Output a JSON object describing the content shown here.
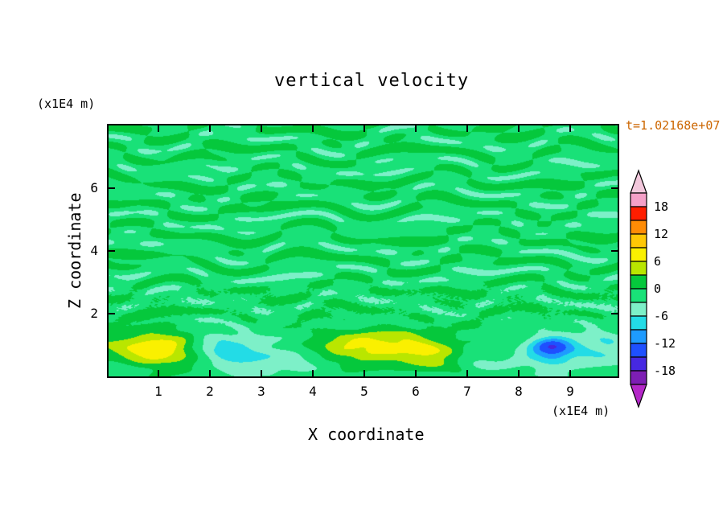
{
  "background": "#ffffff",
  "chart_data": {
    "type": "heatmap",
    "subtype": "filled-contour",
    "title": "vertical velocity",
    "xlabel": "X coordinate",
    "ylabel": "Z coordinate",
    "x_unit_label": "(x1E4 m)",
    "y_unit_label": "(x1E4 m)",
    "time_annotation": "t=1.02168e+07",
    "time_annotation_color": "#cc6600",
    "x_ticks": [
      1,
      2,
      3,
      4,
      5,
      6,
      7,
      8,
      9
    ],
    "y_ticks": [
      2,
      4,
      6
    ],
    "x_range": [
      0,
      9.92
    ],
    "y_range": [
      0,
      8.0
    ],
    "grid": false,
    "legend_position": "right-colorbar",
    "colorbar": {
      "min": -21,
      "max": 21,
      "step": 3,
      "tick_values": [
        18,
        12,
        6,
        0,
        -6,
        -12,
        -18
      ],
      "colors_low_to_high": [
        "#7D1EB4",
        "#4628E1",
        "#1E50FF",
        "#1E9BFF",
        "#23DCE6",
        "#7DF0C8",
        "#19E178",
        "#05C83C",
        "#B9E600",
        "#FAF000",
        "#FFC805",
        "#FF8C05",
        "#FF1E00",
        "#F5A0C8"
      ],
      "under_arrow_color": "#B428C8",
      "over_arrow_color": "#F2C8DC"
    },
    "field": {
      "description": "vertical velocity w(x,z): near-zero streaky two-tone green turbulence aloft, convective extrema in lowest layer (z<1.5)",
      "base": -0.9,
      "streak_amp": 1.5,
      "streak_bottom_amp": 0.45,
      "stipple_band_center": 2.35,
      "stipple_band_width": 0.55,
      "blobs": [
        {
          "x": 0.95,
          "z": 0.85,
          "sx": 0.55,
          "sz": 0.42,
          "a": 9.5,
          "note": "yellow updraft bottom-left"
        },
        {
          "x": 5.7,
          "z": 0.95,
          "sx": 0.8,
          "sz": 0.38,
          "a": 8.0,
          "note": "yellow updraft center"
        },
        {
          "x": 6.5,
          "z": 0.65,
          "sx": 0.45,
          "sz": 0.3,
          "a": 5.0,
          "note": "gold companion of center updraft"
        },
        {
          "x": 4.95,
          "z": 1.05,
          "sx": 0.45,
          "sz": 0.3,
          "a": 3.2,
          "note": "weak positive patch"
        },
        {
          "x": 2.55,
          "z": 0.8,
          "sx": 0.6,
          "sz": 0.42,
          "a": -5.8,
          "note": "cyan downdraft"
        },
        {
          "x": 3.6,
          "z": 0.45,
          "sx": 0.5,
          "sz": 0.3,
          "a": -3.2,
          "note": "aquamarine smudge"
        },
        {
          "x": 7.05,
          "z": 0.75,
          "sx": 0.55,
          "sz": 0.35,
          "a": -4.0,
          "note": "aquamarine patch"
        },
        {
          "x": 8.65,
          "z": 0.95,
          "sx": 0.3,
          "sz": 0.28,
          "a": -11.5,
          "note": "strong blue downdraft spot"
        },
        {
          "x": 8.35,
          "z": 0.55,
          "sx": 0.8,
          "sz": 0.4,
          "a": -3.2,
          "note": "broad aquamarine region"
        },
        {
          "x": 0.3,
          "z": 0.3,
          "sx": 0.5,
          "sz": 0.3,
          "a": -3.0,
          "note": "bottom-left corner aqua"
        },
        {
          "x": 9.65,
          "z": 0.9,
          "sx": 0.45,
          "sz": 0.4,
          "a": -3.2,
          "note": "right-edge aqua patch"
        }
      ]
    }
  }
}
